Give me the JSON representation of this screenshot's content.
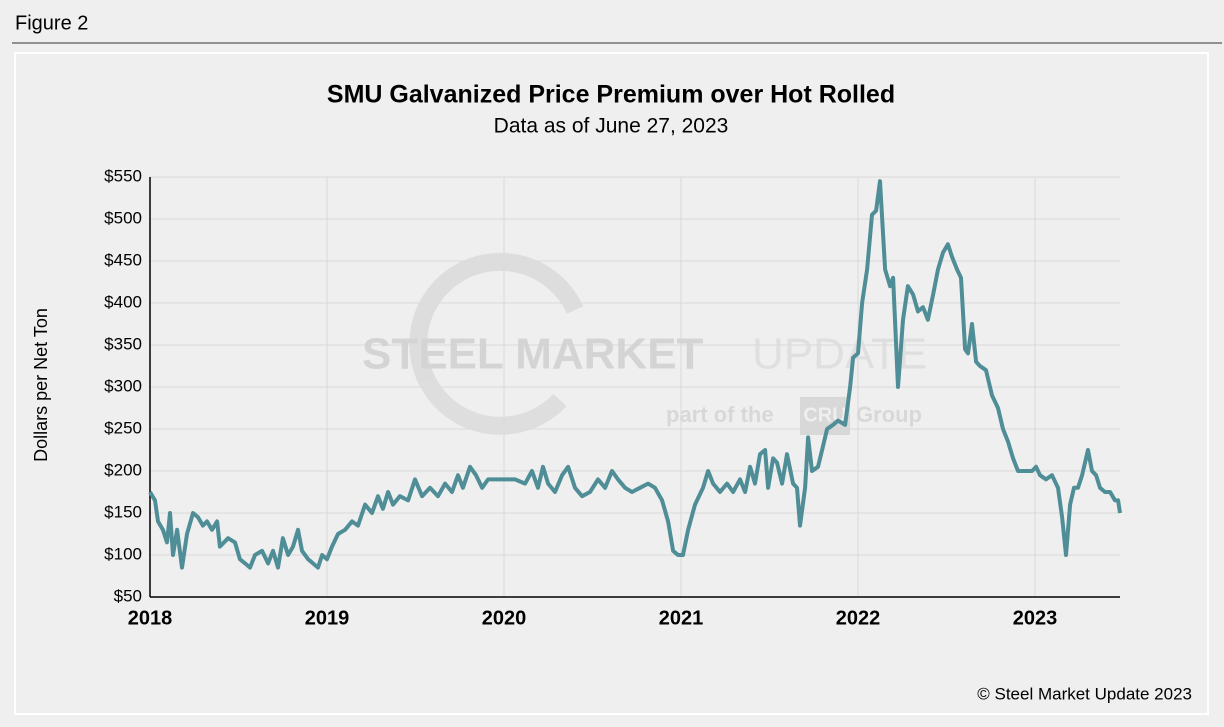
{
  "figure_label": "Figure 2",
  "copyright": "© Steel Market Update 2023",
  "watermark": {
    "main": "STEEL MARKET",
    "light": "UPDATE",
    "sub": "part of the",
    "logo": "CRU",
    "group": "Group"
  },
  "chart_data": {
    "type": "line",
    "title": "SMU Galvanized Price Premium over Hot Rolled",
    "subtitle": "Data as of June 27, 2023",
    "y_label": "Dollars per Net Ton",
    "xlim": [
      2018,
      2023.48
    ],
    "xticks": [
      2018,
      2019,
      2020,
      2021,
      2022,
      2023
    ],
    "ylim": [
      50,
      550
    ],
    "yticks": [
      {
        "value": 50,
        "label": "$50"
      },
      {
        "value": 100,
        "label": "$100"
      },
      {
        "value": 150,
        "label": "$150"
      },
      {
        "value": 200,
        "label": "$200"
      },
      {
        "value": 250,
        "label": "$250"
      },
      {
        "value": 300,
        "label": "$300"
      },
      {
        "value": 350,
        "label": "$350"
      },
      {
        "value": 400,
        "label": "$400"
      },
      {
        "value": 450,
        "label": "$450"
      },
      {
        "value": 500,
        "label": "$500"
      },
      {
        "value": 550,
        "label": "$550"
      }
    ],
    "grid": true,
    "series": [
      {
        "color": "#4f8d97",
        "x": [
          2018.0,
          2018.028,
          2018.045,
          2018.073,
          2018.096,
          2018.113,
          2018.13,
          2018.153,
          2018.181,
          2018.209,
          2018.243,
          2018.271,
          2018.299,
          2018.322,
          2018.35,
          2018.379,
          2018.395,
          2018.441,
          2018.48,
          2018.508,
          2018.537,
          2018.565,
          2018.593,
          2018.633,
          2018.667,
          2018.695,
          2018.723,
          2018.751,
          2018.78,
          2018.808,
          2018.836,
          2018.859,
          2018.893,
          2018.921,
          2018.949,
          2018.972,
          2019.0,
          2019.028,
          2019.062,
          2019.102,
          2019.141,
          2019.175,
          2019.215,
          2019.254,
          2019.288,
          2019.316,
          2019.345,
          2019.373,
          2019.412,
          2019.458,
          2019.497,
          2019.537,
          2019.582,
          2019.627,
          2019.667,
          2019.706,
          2019.74,
          2019.768,
          2019.808,
          2019.842,
          2019.876,
          2019.91,
          2019.977,
          2020.062,
          2020.119,
          2020.158,
          2020.192,
          2020.22,
          2020.249,
          2020.288,
          2020.328,
          2020.362,
          2020.401,
          2020.441,
          2020.486,
          2020.531,
          2020.571,
          2020.61,
          2020.644,
          2020.684,
          2020.723,
          2020.768,
          2020.814,
          2020.853,
          2020.893,
          2020.927,
          2020.955,
          2020.983,
          2021.011,
          2021.04,
          2021.079,
          2021.124,
          2021.153,
          2021.181,
          2021.22,
          2021.26,
          2021.294,
          2021.333,
          2021.362,
          2021.39,
          2021.418,
          2021.446,
          2021.475,
          2021.492,
          2021.52,
          2021.542,
          2021.571,
          2021.599,
          2021.633,
          2021.655,
          2021.672,
          2021.701,
          2021.718,
          2021.74,
          2021.774,
          2021.797,
          2021.825,
          2021.859,
          2021.887,
          2021.927,
          2021.955,
          2021.972,
          2022.0,
          2022.023,
          2022.051,
          2022.079,
          2022.102,
          2022.124,
          2022.153,
          2022.181,
          2022.198,
          2022.226,
          2022.254,
          2022.282,
          2022.311,
          2022.339,
          2022.367,
          2022.395,
          2022.424,
          2022.452,
          2022.48,
          2022.508,
          2022.531,
          2022.559,
          2022.582,
          2022.605,
          2022.621,
          2022.644,
          2022.667,
          2022.689,
          2022.723,
          2022.757,
          2022.791,
          2022.819,
          2022.847,
          2022.876,
          2022.904,
          2022.944,
          2022.983,
          2023.006,
          2023.028,
          2023.062,
          2023.096,
          2023.13,
          2023.153,
          2023.175,
          2023.198,
          2023.22,
          2023.243,
          2023.266,
          2023.288,
          2023.299,
          2023.322,
          2023.345,
          2023.367,
          2023.395,
          2023.424,
          2023.452,
          2023.469,
          2023.48
        ],
        "values": [
          175,
          165,
          140,
          130,
          115,
          150,
          100,
          130,
          85,
          125,
          150,
          145,
          135,
          140,
          130,
          140,
          110,
          120,
          115,
          95,
          90,
          85,
          100,
          105,
          90,
          105,
          85,
          120,
          100,
          110,
          130,
          105,
          95,
          90,
          85,
          100,
          95,
          110,
          125,
          130,
          140,
          135,
          160,
          150,
          170,
          155,
          175,
          160,
          170,
          165,
          190,
          170,
          180,
          170,
          185,
          175,
          195,
          180,
          205,
          195,
          180,
          190,
          190,
          190,
          185,
          200,
          180,
          205,
          185,
          175,
          195,
          205,
          180,
          170,
          175,
          190,
          180,
          200,
          190,
          180,
          175,
          180,
          185,
          180,
          165,
          140,
          105,
          100,
          100,
          130,
          160,
          180,
          200,
          185,
          175,
          185,
          175,
          190,
          175,
          205,
          185,
          220,
          225,
          180,
          215,
          210,
          185,
          220,
          185,
          180,
          135,
          180,
          240,
          200,
          205,
          225,
          250,
          255,
          260,
          255,
          300,
          335,
          340,
          400,
          440,
          505,
          510,
          545,
          440,
          420,
          430,
          300,
          380,
          420,
          410,
          390,
          395,
          380,
          410,
          440,
          460,
          470,
          455,
          440,
          430,
          345,
          340,
          375,
          330,
          325,
          320,
          290,
          275,
          250,
          235,
          215,
          200,
          200,
          200,
          205,
          195,
          190,
          195,
          180,
          145,
          100,
          160,
          180,
          180,
          195,
          215,
          225,
          200,
          195,
          180,
          175,
          175,
          165,
          165,
          150
        ]
      }
    ]
  }
}
